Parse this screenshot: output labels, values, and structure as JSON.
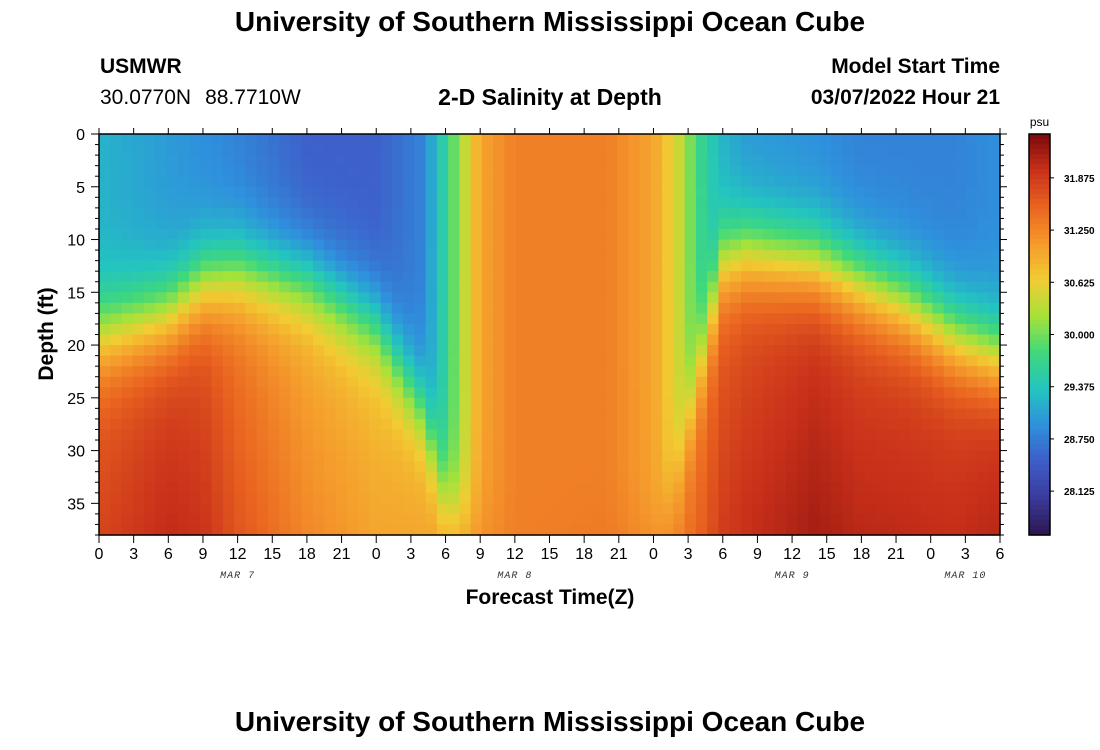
{
  "header": {
    "title": "University of Southern Mississippi Ocean Cube",
    "station": "USMWR",
    "latitude": "30.0770N",
    "longitude": "88.7710W",
    "subtitle": "2-D Salinity at Depth",
    "model_start_label": "Model Start Time",
    "model_start_time": "03/07/2022 Hour 21"
  },
  "footer": {
    "title": "University of Southern Mississippi Ocean Cube"
  },
  "chart_data": {
    "type": "heatmap",
    "title": "2-D Salinity at Depth",
    "xlabel": "Forecast Time(Z)",
    "ylabel": "Depth (ft)",
    "x_ticks": [
      "0",
      "3",
      "6",
      "9",
      "12",
      "15",
      "18",
      "21",
      "0",
      "3",
      "6",
      "9",
      "12",
      "15",
      "18",
      "21",
      "0",
      "3",
      "6",
      "9",
      "12",
      "15",
      "18",
      "21",
      "0",
      "3",
      "6"
    ],
    "x_range_hours": [
      0,
      78
    ],
    "date_labels": [
      {
        "text": "MAR 7",
        "hour": 12
      },
      {
        "text": "MAR 8",
        "hour": 36
      },
      {
        "text": "MAR 9",
        "hour": 60
      },
      {
        "text": "MAR 10",
        "hour": 75
      }
    ],
    "y_ticks": [
      0,
      5,
      10,
      15,
      20,
      25,
      30,
      35
    ],
    "ylim": [
      0,
      38
    ],
    "y_inverted": true,
    "colorbar": {
      "unit": "psu",
      "min": 27.6,
      "max": 32.4,
      "ticks": [
        "31.875",
        "31.250",
        "30.625",
        "30.000",
        "29.375",
        "28.750",
        "28.125"
      ],
      "colors": [
        "#2c1650",
        "#3a3a9a",
        "#3f5cc8",
        "#2f90dd",
        "#23c4c0",
        "#3fd87c",
        "#a6e23a",
        "#f2cc32",
        "#f59a2c",
        "#ea6420",
        "#c8301a",
        "#7a0a0a"
      ]
    },
    "profiles": {
      "time_hours": [
        0,
        6,
        9,
        12,
        18,
        24,
        28,
        30,
        33,
        36,
        44,
        48,
        50,
        52,
        54,
        56,
        62,
        66,
        70,
        74,
        78
      ],
      "surface_psu": [
        29.2,
        29.0,
        28.9,
        28.8,
        28.5,
        28.5,
        28.8,
        29.6,
        31.0,
        31.3,
        31.3,
        31.0,
        30.5,
        29.7,
        29.2,
        29.0,
        28.9,
        28.8,
        28.8,
        28.8,
        28.9
      ],
      "halocline_depth_ft": [
        19,
        17,
        14,
        13,
        14,
        18,
        26,
        35,
        38,
        38,
        38,
        38,
        33,
        22,
        12,
        11,
        12,
        14,
        16,
        19,
        21
      ],
      "deep_psu": [
        31.6,
        31.8,
        31.7,
        31.4,
        31.0,
        30.8,
        30.9,
        31.1,
        31.3,
        31.3,
        31.4,
        31.3,
        31.3,
        31.4,
        31.6,
        31.7,
        31.9,
        31.8,
        31.8,
        31.8,
        31.9
      ]
    }
  }
}
